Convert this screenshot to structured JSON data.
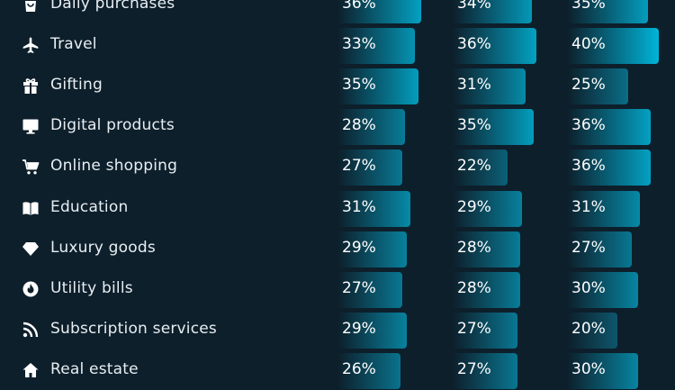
{
  "chart_data": {
    "type": "bar",
    "categories": [
      "Daily purchases",
      "Travel",
      "Gifting",
      "Digital products",
      "Online shopping",
      "Education",
      "Luxury goods",
      "Utility bills",
      "Subscription services",
      "Real estate"
    ],
    "icons": [
      "shopping-bag-icon",
      "airplane-icon",
      "gift-icon",
      "monitor-icon",
      "shopping-cart-icon",
      "book-icon",
      "diamond-icon",
      "fire-icon",
      "rss-icon",
      "home-icon"
    ],
    "series": [
      {
        "values": [
          36,
          33,
          35,
          28,
          27,
          31,
          29,
          27,
          29,
          26
        ]
      },
      {
        "values": [
          34,
          36,
          31,
          35,
          22,
          29,
          28,
          28,
          27,
          27
        ]
      },
      {
        "values": [
          35,
          40,
          25,
          36,
          36,
          31,
          27,
          30,
          20,
          30
        ]
      }
    ],
    "value_suffix": "%",
    "colors": {
      "background": "#0d1f2b",
      "bar_high": "#00b4d8",
      "bar_low": "#0f4d61",
      "text": "#ffffff"
    }
  }
}
